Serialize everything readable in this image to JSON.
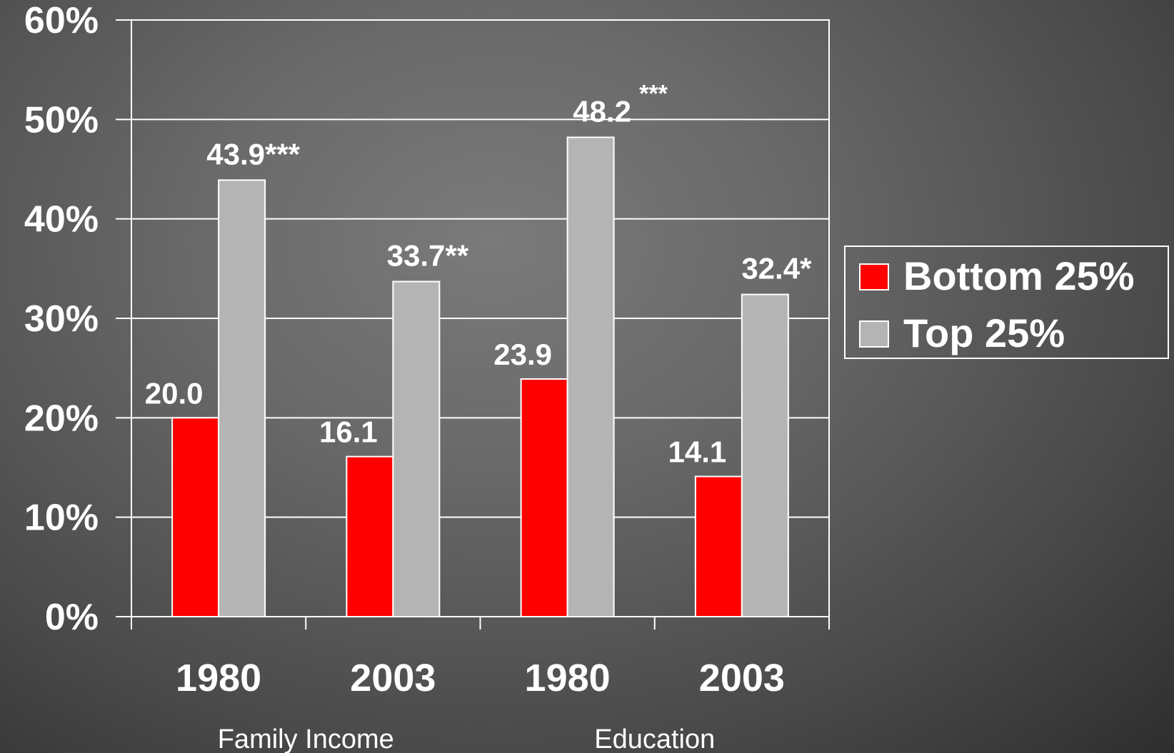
{
  "chart_data": {
    "type": "bar",
    "categories": [
      "1980",
      "2003",
      "1980",
      "2003"
    ],
    "groups": [
      {
        "label": "Family Income",
        "categories": [
          0,
          1
        ]
      },
      {
        "label": "Education",
        "categories": [
          2,
          3
        ]
      }
    ],
    "series": [
      {
        "name": "Bottom 25%",
        "color": "#ff0000",
        "values": [
          20.0,
          16.1,
          23.9,
          14.1
        ],
        "labels": [
          "20.0",
          "16.1",
          "23.9",
          "14.1"
        ]
      },
      {
        "name": "Top 25%",
        "color": "#b4b4b4",
        "values": [
          43.9,
          33.7,
          48.2,
          32.4
        ],
        "labels": [
          "43.9***",
          "33.7**",
          "48.2",
          "32.4*"
        ],
        "extra_marks": [
          "",
          "",
          "***",
          ""
        ]
      }
    ],
    "yticks": [
      "0%",
      "10%",
      "20%",
      "30%",
      "40%",
      "50%",
      "60%"
    ],
    "ylim": [
      0,
      60
    ],
    "grid": true,
    "legend_position": "right"
  }
}
